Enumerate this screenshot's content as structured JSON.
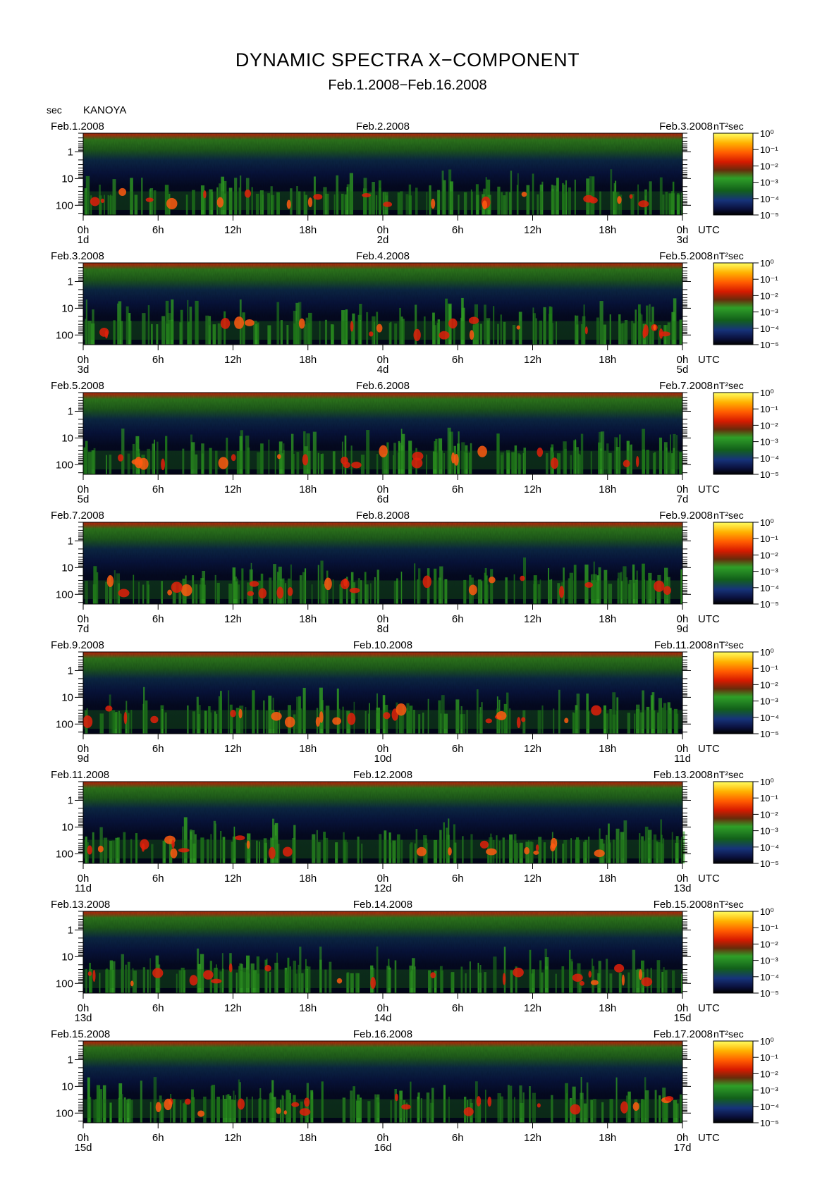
{
  "title": "DYNAMIC SPECTRA X−COMPONENT",
  "subtitle": "Feb.1.2008−Feb.16.2008",
  "y_unit": "sec",
  "station": "KANOYA",
  "colorbar_unit": "nT²sec",
  "time_zone": "UTC",
  "chart_data": {
    "type": "heatmap",
    "description_note": "",
    "y_axis": {
      "label": "sec",
      "scale": "log",
      "ticks": [
        "1",
        "10",
        "100"
      ],
      "inverted": true
    },
    "x_axis": {
      "ticks": [
        "0h",
        "6h",
        "12h",
        "18h",
        "0h",
        "6h",
        "12h",
        "18h",
        "0h"
      ],
      "unit": "UTC"
    },
    "colorbar": {
      "unit": "nT²sec",
      "scale": "log",
      "range": [
        1e-05,
        1
      ],
      "ticks": [
        "10⁰",
        "10⁻¹",
        "10⁻²",
        "10⁻³",
        "10⁻⁴",
        "10⁻⁵"
      ],
      "colors": [
        "#000000",
        "#0a1a5a",
        "#1b6b1b",
        "#34b12a",
        "#a8200a",
        "#ff2a00",
        "#ff9a00",
        "#ffff50"
      ]
    },
    "panels": [
      {
        "date_left": "Feb.1.2008",
        "date_mid": "Feb.2.2008",
        "date_right": "Feb.3.2008",
        "day_labels": [
          "1d",
          "2d",
          "3d"
        ]
      },
      {
        "date_left": "Feb.3.2008",
        "date_mid": "Feb.4.2008",
        "date_right": "Feb.5.2008",
        "day_labels": [
          "3d",
          "4d",
          "5d"
        ]
      },
      {
        "date_left": "Feb.5.2008",
        "date_mid": "Feb.6.2008",
        "date_right": "Feb.7.2008",
        "day_labels": [
          "5d",
          "6d",
          "7d"
        ]
      },
      {
        "date_left": "Feb.7.2008",
        "date_mid": "Feb.8.2008",
        "date_right": "Feb.9.2008",
        "day_labels": [
          "7d",
          "8d",
          "9d"
        ]
      },
      {
        "date_left": "Feb.9.2008",
        "date_mid": "Feb.10.2008",
        "date_right": "Feb.11.2008",
        "day_labels": [
          "9d",
          "10d",
          "11d"
        ]
      },
      {
        "date_left": "Feb.11.2008",
        "date_mid": "Feb.12.2008",
        "date_right": "Feb.13.2008",
        "day_labels": [
          "11d",
          "12d",
          "13d"
        ]
      },
      {
        "date_left": "Feb.13.2008",
        "date_mid": "Feb.14.2008",
        "date_right": "Feb.15.2008",
        "day_labels": [
          "13d",
          "14d",
          "15d"
        ]
      },
      {
        "date_left": "Feb.15.2008",
        "date_mid": "Feb.16.2008",
        "date_right": "Feb.17.2008",
        "day_labels": [
          "15d",
          "16d",
          "17d"
        ]
      }
    ]
  }
}
